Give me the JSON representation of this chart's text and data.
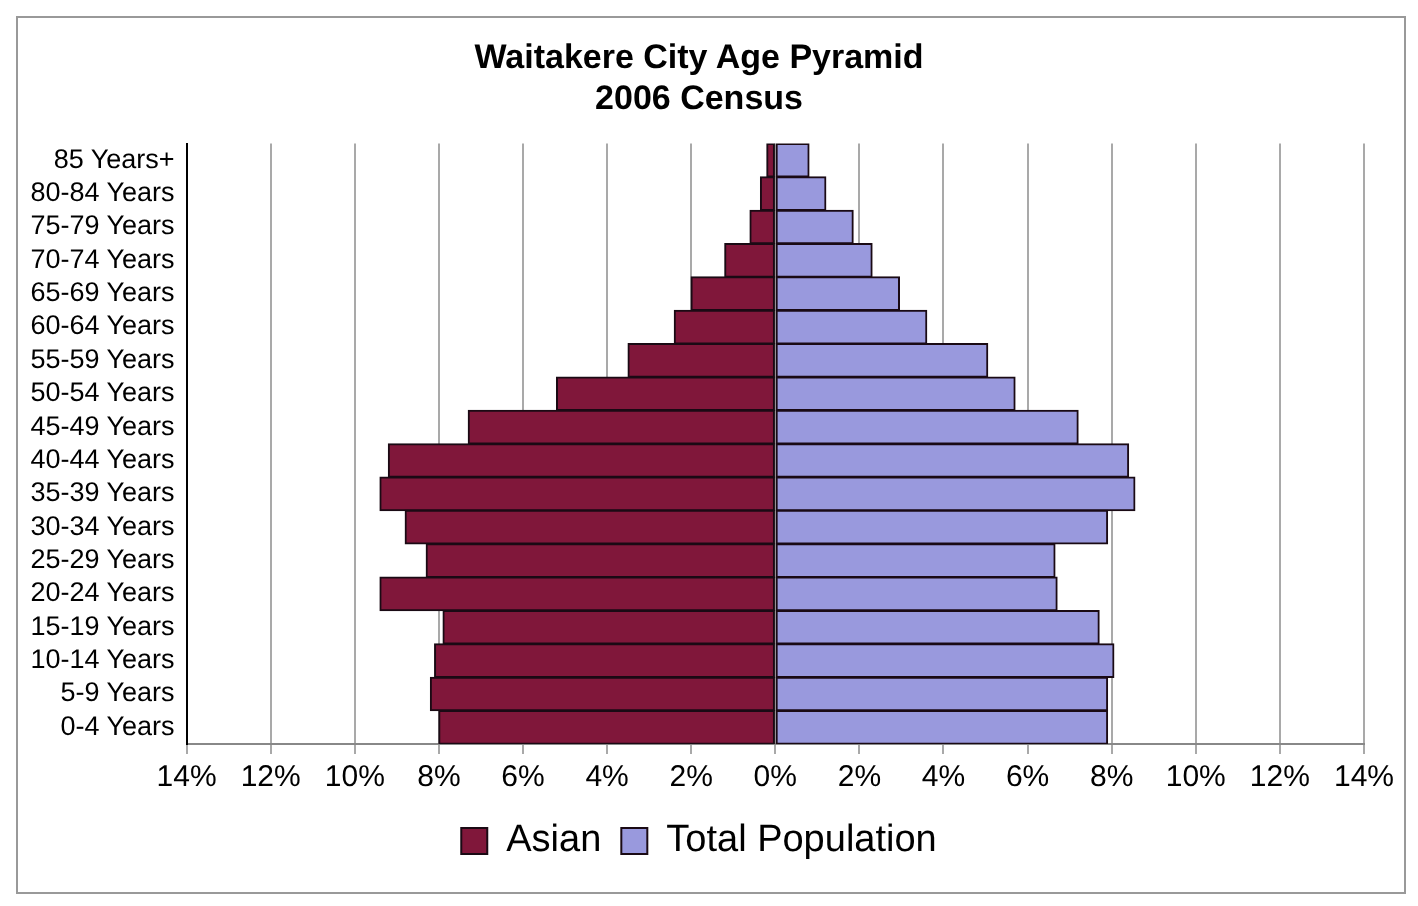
{
  "chart_data": {
    "type": "bar",
    "orientation": "horizontal",
    "stacked": true,
    "title": "Waitakere City Age Pyramid",
    "subtitle": "2006 Census",
    "categories": [
      "85 Years+",
      "80-84 Years",
      "75-79 Years",
      "70-74 Years",
      "65-69 Years",
      "60-64 Years",
      "55-59 Years",
      "50-54 Years",
      "45-49 Years",
      "40-44 Years",
      "35-39 Years",
      "30-34 Years",
      "25-29 Years",
      "20-24 Years",
      "15-19 Years",
      "10-14 Years",
      "5-9 Years",
      "0-4 Years"
    ],
    "series": [
      {
        "name": "Asian",
        "color": "#80173a",
        "values": [
          -0.2,
          -0.35,
          -0.6,
          -1.2,
          -2.0,
          -2.4,
          -3.5,
          -5.2,
          -7.3,
          -9.2,
          -9.4,
          -8.8,
          -8.3,
          -9.4,
          -7.9,
          -8.1,
          -8.2,
          -8.0
        ]
      },
      {
        "name": "Total Population",
        "color": "#9999dd",
        "values": [
          0.8,
          1.2,
          1.85,
          2.3,
          2.95,
          3.6,
          5.05,
          5.7,
          7.2,
          8.4,
          8.55,
          7.9,
          6.65,
          6.7,
          7.7,
          8.05,
          7.9,
          7.9
        ]
      }
    ],
    "xlim": [
      -14,
      14
    ],
    "xticks": [
      {
        "value": -14,
        "label": "14%"
      },
      {
        "value": -12,
        "label": "12%"
      },
      {
        "value": -10,
        "label": "10%"
      },
      {
        "value": -8,
        "label": "8%"
      },
      {
        "value": -6,
        "label": "6%"
      },
      {
        "value": -4,
        "label": "4%"
      },
      {
        "value": -2,
        "label": "2%"
      },
      {
        "value": 0,
        "label": "0%"
      },
      {
        "value": 2,
        "label": "2%"
      },
      {
        "value": 4,
        "label": "4%"
      },
      {
        "value": 6,
        "label": "6%"
      },
      {
        "value": 8,
        "label": "8%"
      },
      {
        "value": 10,
        "label": "10%"
      },
      {
        "value": 12,
        "label": "12%"
      },
      {
        "value": 14,
        "label": "14%"
      }
    ],
    "grid": "x",
    "legend": "bottom"
  }
}
